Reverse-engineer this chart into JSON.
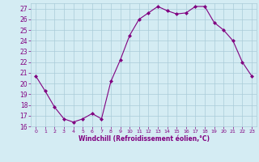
{
  "x": [
    0,
    1,
    2,
    3,
    4,
    5,
    6,
    7,
    8,
    9,
    10,
    11,
    12,
    13,
    14,
    15,
    16,
    17,
    18,
    19,
    20,
    21,
    22,
    23
  ],
  "y": [
    20.7,
    19.3,
    17.8,
    16.7,
    16.4,
    16.7,
    17.2,
    16.7,
    20.2,
    22.2,
    24.5,
    26.0,
    26.6,
    27.2,
    26.8,
    26.5,
    26.6,
    27.2,
    27.2,
    25.7,
    25.0,
    24.0,
    22.0,
    20.7
  ],
  "line_color": "#800080",
  "marker": "D",
  "marker_size": 2,
  "bg_color": "#d4ecf3",
  "grid_color": "#aaccd8",
  "xlabel": "Windchill (Refroidissement éolien,°C)",
  "xlabel_color": "#800080",
  "tick_color": "#800080",
  "ylim": [
    16,
    27.5
  ],
  "yticks": [
    16,
    17,
    18,
    19,
    20,
    21,
    22,
    23,
    24,
    25,
    26,
    27
  ],
  "xlim": [
    -0.5,
    23.5
  ],
  "xticks": [
    0,
    1,
    2,
    3,
    4,
    5,
    6,
    7,
    8,
    9,
    10,
    11,
    12,
    13,
    14,
    15,
    16,
    17,
    18,
    19,
    20,
    21,
    22,
    23
  ]
}
